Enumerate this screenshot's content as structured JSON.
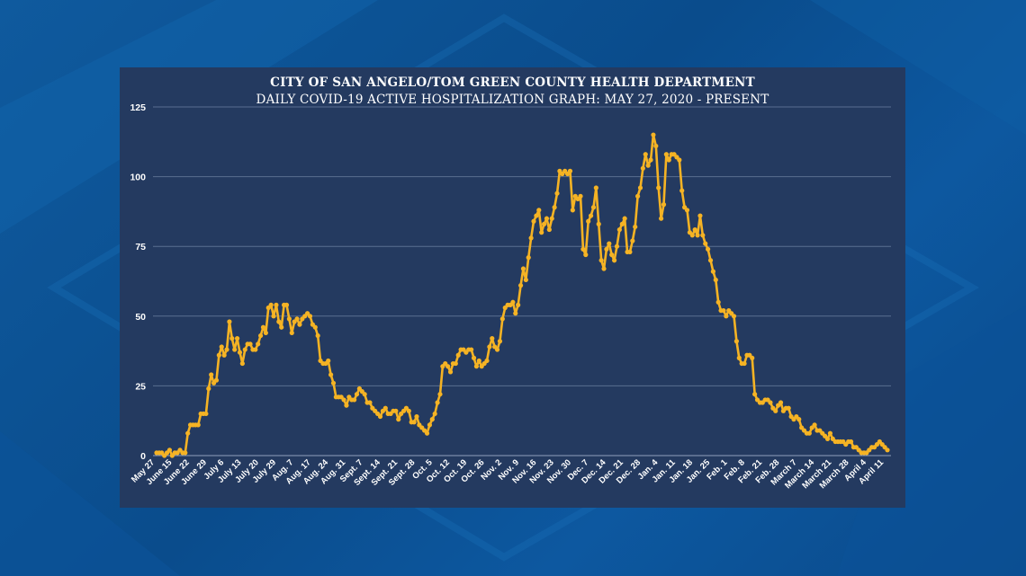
{
  "colors": {
    "line": "#f5b324",
    "panel": "#243a60",
    "grid": "#5a6f91",
    "text": "#ffffff"
  },
  "chart_data": {
    "type": "line",
    "title": "CITY OF SAN ANGELO/TOM GREEN COUNTY HEALTH DEPARTMENT",
    "subtitle": "DAILY COVID-19 ACTIVE HOSPITALIZATION GRAPH: MAY 27, 2020 - PRESENT",
    "xlabel": "",
    "ylabel": "",
    "ylim": [
      0,
      125
    ],
    "yticks": [
      0,
      25,
      50,
      75,
      100,
      125
    ],
    "grid": true,
    "legend": "none",
    "xticks": [
      "May 27",
      "June 15",
      "June 22",
      "June 29",
      "July 6",
      "July 13",
      "July 20",
      "July 29",
      "Aug. 7",
      "Aug. 17",
      "Aug. 24",
      "Aug. 31",
      "Sept. 7",
      "Sept. 14",
      "Sept. 21",
      "Sept. 28",
      "Oct. 5",
      "Oct. 12",
      "Oct. 19",
      "Oct. 26",
      "Nov. 2",
      "Nov. 9",
      "Nov. 16",
      "Nov. 23",
      "Nov. 30",
      "Dec. 7",
      "Dec. 14",
      "Dec. 21",
      "Dec. 28",
      "Jan. 4",
      "Jan. 11",
      "Jan. 18",
      "Jan. 25",
      "Feb. 1",
      "Feb. 8",
      "Feb. 21",
      "Feb. 28",
      "March 7",
      "March 14",
      "March 21",
      "March 28",
      "April 4",
      "April 11"
    ],
    "series": [
      {
        "values": [
          1,
          1,
          1,
          0,
          1,
          2,
          0,
          1,
          1,
          2,
          1,
          1,
          8,
          11,
          11,
          11,
          11,
          15,
          15,
          15,
          24,
          29,
          26,
          27,
          36,
          39,
          36,
          38,
          48,
          42,
          38,
          42,
          37,
          33,
          38,
          40,
          40,
          38,
          38,
          40,
          43,
          46,
          44,
          53,
          54,
          50,
          54,
          48,
          46,
          54,
          54,
          49,
          44,
          48,
          49,
          47,
          49,
          50,
          51,
          50,
          47,
          46,
          43,
          34,
          33,
          33,
          34,
          29,
          26,
          21,
          21,
          21,
          20,
          18,
          21,
          20,
          20,
          22,
          24,
          23,
          22,
          19,
          19,
          17,
          16,
          15,
          14,
          16,
          17,
          15,
          15,
          16,
          16,
          13,
          15,
          16,
          17,
          16,
          12,
          12,
          14,
          11,
          10,
          9,
          8,
          11,
          13,
          15,
          19,
          22,
          32,
          33,
          32,
          30,
          33,
          33,
          36,
          38,
          38,
          37,
          38,
          38,
          35,
          32,
          34,
          32,
          33,
          34,
          39,
          42,
          39,
          38,
          41,
          49,
          53,
          54,
          54,
          55,
          51,
          54,
          61,
          67,
          63,
          71,
          78,
          84,
          86,
          88,
          80,
          83,
          85,
          81,
          85,
          89,
          94,
          102,
          101,
          102,
          101,
          102,
          88,
          93,
          92,
          93,
          74,
          72,
          84,
          86,
          89,
          96,
          83,
          70,
          67,
          74,
          76,
          72,
          70,
          75,
          81,
          83,
          85,
          73,
          73,
          77,
          82,
          93,
          96,
          103,
          108,
          104,
          106,
          115,
          111,
          96,
          85,
          90,
          108,
          106,
          108,
          108,
          107,
          106,
          95,
          89,
          88,
          80,
          79,
          81,
          79,
          86,
          79,
          76,
          74,
          70,
          66,
          63,
          55,
          52,
          52,
          50,
          52,
          51,
          50,
          41,
          35,
          33,
          33,
          36,
          36,
          35,
          22,
          20,
          19,
          19,
          20,
          20,
          19,
          17,
          16,
          18,
          19,
          16,
          17,
          17,
          14,
          13,
          14,
          13,
          10,
          9,
          8,
          8,
          10,
          11,
          9,
          9,
          8,
          7,
          6,
          8,
          6,
          5,
          5,
          5,
          5,
          4,
          5,
          5,
          3,
          3,
          2,
          1,
          1,
          1,
          2,
          3,
          3,
          4,
          5,
          4,
          3,
          2
        ]
      }
    ]
  }
}
